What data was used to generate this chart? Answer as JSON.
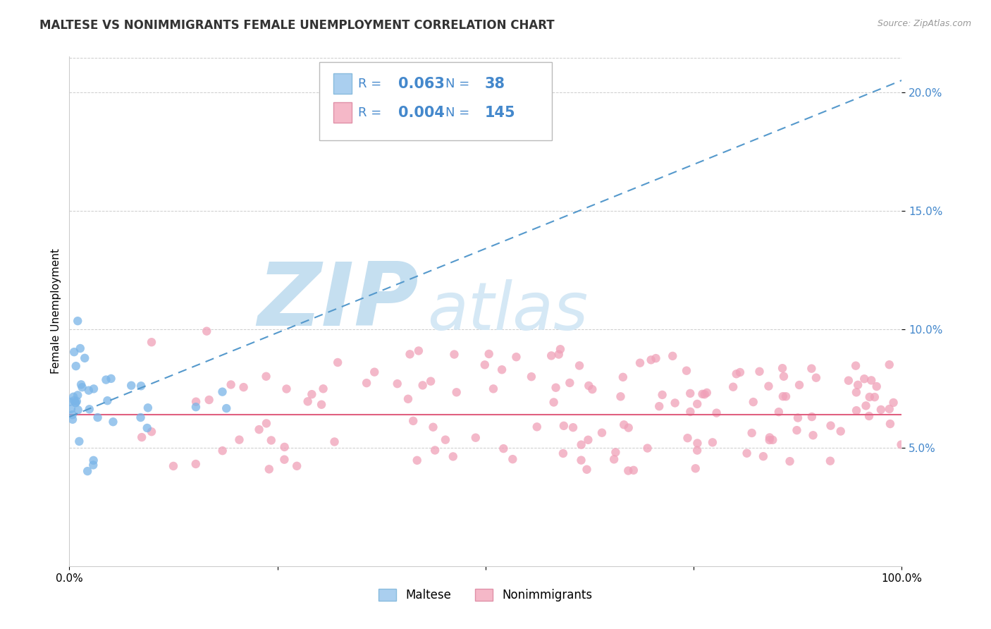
{
  "title": "MALTESE VS NONIMMIGRANTS FEMALE UNEMPLOYMENT CORRELATION CHART",
  "source_text": "Source: ZipAtlas.com",
  "ylabel": "Female Unemployment",
  "xlim": [
    0.0,
    1.0
  ],
  "ylim": [
    0.0,
    0.215
  ],
  "yticks": [
    0.05,
    0.1,
    0.15,
    0.2
  ],
  "ytick_labels": [
    "5.0%",
    "10.0%",
    "15.0%",
    "20.0%"
  ],
  "xtick_labels": [
    "0.0%",
    "100.0%"
  ],
  "legend_maltese_R": "0.063",
  "legend_maltese_N": "38",
  "legend_nonimm_R": "0.004",
  "legend_nonimm_N": "145",
  "maltese_color": "#7ab5e8",
  "maltese_legend_color": "#aacfef",
  "nonimm_color": "#f0a0b8",
  "nonimm_legend_color": "#f5b8c8",
  "maltese_trend_color": "#5599cc",
  "nonimm_trend_color": "#e06080",
  "trend_line_start_x": 0.0,
  "trend_line_start_y": 0.063,
  "trend_line_end_x": 1.0,
  "trend_line_end_y": 0.205,
  "nonimm_trend_y": 0.064,
  "watermark_ZIP_color": "#c5dff0",
  "watermark_atlas_color": "#d5e8f5",
  "grid_color": "#cccccc",
  "background_color": "#ffffff",
  "title_fontsize": 12,
  "source_fontsize": 9,
  "tick_color": "#4488cc",
  "tick_fontsize": 11,
  "legend_fontsize": 13,
  "legend_value_fontsize": 15,
  "ylabel_fontsize": 11
}
